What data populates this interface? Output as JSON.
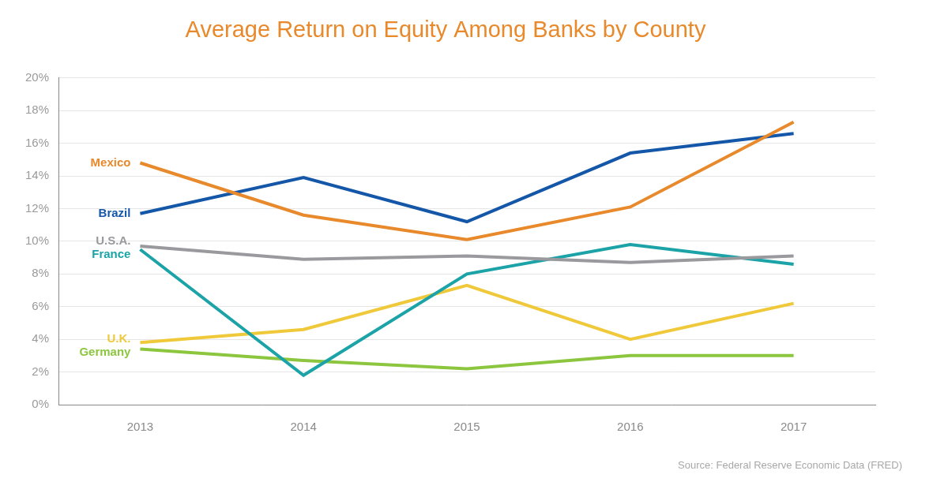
{
  "chart_data": {
    "type": "line",
    "title": "Average Return on Equity Among Banks by County",
    "source": "Source: Federal Reserve Economic Data (FRED)",
    "categories": [
      "2013",
      "2014",
      "2015",
      "2016",
      "2017"
    ],
    "series": [
      {
        "name": "Mexico",
        "color": "#e8892b",
        "values": [
          14.8,
          11.6,
          10.1,
          12.1,
          17.3
        ]
      },
      {
        "name": "Brazil",
        "color": "#1457a8",
        "values": [
          11.7,
          13.9,
          11.2,
          15.4,
          16.6
        ]
      },
      {
        "name": "U.S.A.",
        "color": "#9a9a9e",
        "values": [
          9.7,
          8.9,
          9.1,
          8.7,
          9.1
        ]
      },
      {
        "name": "France",
        "color": "#1ba3a8",
        "values": [
          9.5,
          1.8,
          8.0,
          9.8,
          8.6
        ]
      },
      {
        "name": "U.K.",
        "color": "#f0c93a",
        "values": [
          3.8,
          4.6,
          7.3,
          4.0,
          6.2
        ]
      },
      {
        "name": "Germany",
        "color": "#8cc63f",
        "values": [
          3.4,
          2.7,
          2.2,
          3.0,
          3.0
        ]
      }
    ],
    "ylim": [
      0,
      20
    ],
    "yticks": [
      {
        "value": 0,
        "label": "0%"
      },
      {
        "value": 2,
        "label": "2%"
      },
      {
        "value": 4,
        "label": "4%"
      },
      {
        "value": 6,
        "label": "6%"
      },
      {
        "value": 8,
        "label": "8%"
      },
      {
        "value": 10,
        "label": "10%"
      },
      {
        "value": 12,
        "label": "12%"
      },
      {
        "value": 14,
        "label": "14%"
      },
      {
        "value": 16,
        "label": "16%"
      },
      {
        "value": 18,
        "label": "18%"
      },
      {
        "value": 20,
        "label": "20%"
      }
    ],
    "grid": true
  }
}
